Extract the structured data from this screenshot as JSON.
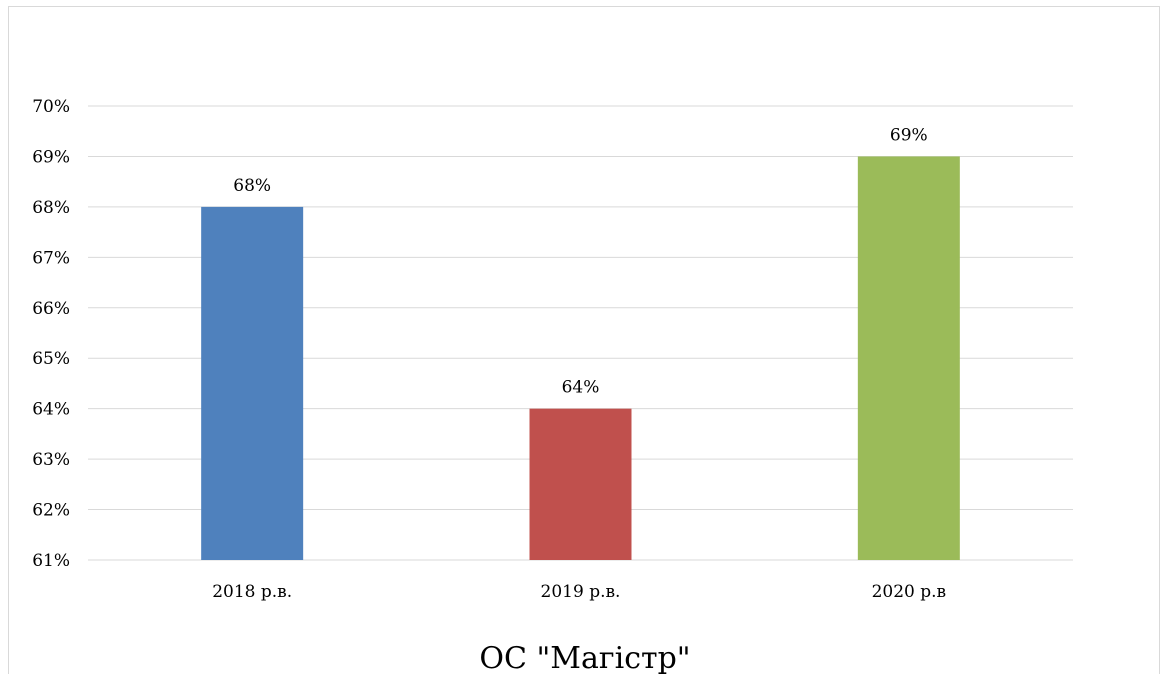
{
  "chart_data": {
    "type": "bar",
    "categories": [
      "2018 р.в.",
      "2019 р.в.",
      "2020 р.в"
    ],
    "values": [
      68,
      64,
      69
    ],
    "data_labels": [
      "68%",
      "64%",
      "69%"
    ],
    "colors": [
      "#4f81bd",
      "#c0504d",
      "#9bbb59"
    ],
    "xlabel": "ОС \"Магістр\"",
    "ylabel": "",
    "ylim": [
      61,
      70
    ],
    "yticks": [
      "61%",
      "62%",
      "63%",
      "64%",
      "65%",
      "66%",
      "67%",
      "68%",
      "69%",
      "70%"
    ],
    "grid": true
  }
}
